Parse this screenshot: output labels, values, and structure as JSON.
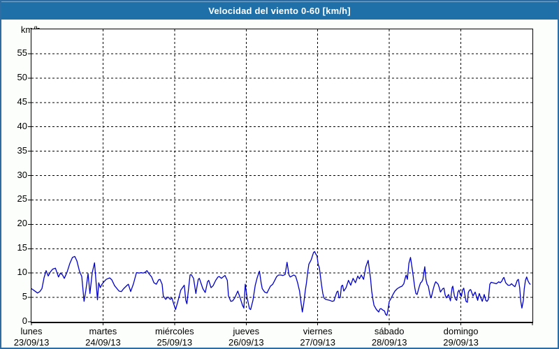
{
  "window": {
    "title": "Velocidad del viento 0-60 [km/h]"
  },
  "colors": {
    "titlebar_bg": "#1f6fa8",
    "titlebar_text": "#ffffff",
    "frame_border": "#2e6ca4",
    "page_bg": "#fbfefb",
    "plot_bg": "#ffffff",
    "grid": "#000000",
    "line": "#0000c8"
  },
  "chart_data": {
    "type": "line",
    "title": "Velocidad del viento 0-60 [km/h]",
    "y_unit_label": "km/h",
    "ylabel": "km/h",
    "xlabel": "",
    "ylim": [
      0,
      60
    ],
    "ytick_step": 5,
    "yticks": [
      0,
      5,
      10,
      15,
      20,
      25,
      30,
      35,
      40,
      45,
      50,
      55
    ],
    "grid": "dashed-black",
    "legend": "none",
    "series_name": "velocidad del viento",
    "x_days": [
      {
        "name": "lunes",
        "date": "23/09/13"
      },
      {
        "name": "martes",
        "date": "24/09/13"
      },
      {
        "name": "miércoles",
        "date": "25/09/13"
      },
      {
        "name": "jueves",
        "date": "26/09/13"
      },
      {
        "name": "viernes",
        "date": "27/09/13"
      },
      {
        "name": "sábado",
        "date": "28/09/13"
      },
      {
        "name": "domingo",
        "date": "29/09/13"
      }
    ],
    "points": [
      [
        0.0,
        6.8
      ],
      [
        0.039,
        6.4
      ],
      [
        0.085,
        5.9
      ],
      [
        0.117,
        6.2
      ],
      [
        0.146,
        6.8
      ],
      [
        0.176,
        9.0
      ],
      [
        0.205,
        10.5
      ],
      [
        0.234,
        9.4
      ],
      [
        0.264,
        10.2
      ],
      [
        0.296,
        10.8
      ],
      [
        0.335,
        11.0
      ],
      [
        0.378,
        9.2
      ],
      [
        0.405,
        10.0
      ],
      [
        0.434,
        9.6
      ],
      [
        0.459,
        8.9
      ],
      [
        0.498,
        10.2
      ],
      [
        0.537,
        12.0
      ],
      [
        0.573,
        13.2
      ],
      [
        0.605,
        13.4
      ],
      [
        0.635,
        12.5
      ],
      [
        0.671,
        10.4
      ],
      [
        0.703,
        9.3
      ],
      [
        0.735,
        4.2
      ],
      [
        0.761,
        6.5
      ],
      [
        0.791,
        9.9
      ],
      [
        0.817,
        5.8
      ],
      [
        0.849,
        10.1
      ],
      [
        0.882,
        12.1
      ],
      [
        0.923,
        4.5
      ],
      [
        0.94,
        8.0
      ],
      [
        0.962,
        7.0
      ],
      [
        0.981,
        7.6
      ],
      [
        1.012,
        8.2
      ],
      [
        1.045,
        8.7
      ],
      [
        1.093,
        9.0
      ],
      [
        1.123,
        8.6
      ],
      [
        1.162,
        7.4
      ],
      [
        1.223,
        6.3
      ],
      [
        1.256,
        6.2
      ],
      [
        1.289,
        6.8
      ],
      [
        1.338,
        7.5
      ],
      [
        1.354,
        7.7
      ],
      [
        1.386,
        6.2
      ],
      [
        1.425,
        7.8
      ],
      [
        1.467,
        10.1
      ],
      [
        1.503,
        10.0
      ],
      [
        1.533,
        10.1
      ],
      [
        1.562,
        10.0
      ],
      [
        1.591,
        10.2
      ],
      [
        1.614,
        10.5
      ],
      [
        1.64,
        9.9
      ],
      [
        1.679,
        9.2
      ],
      [
        1.711,
        8.0
      ],
      [
        1.745,
        7.7
      ],
      [
        1.777,
        8.6
      ],
      [
        1.796,
        8.7
      ],
      [
        1.826,
        7.7
      ],
      [
        1.842,
        5.3
      ],
      [
        1.875,
        4.6
      ],
      [
        1.907,
        5.1
      ],
      [
        1.94,
        4.6
      ],
      [
        1.962,
        4.9
      ],
      [
        1.985,
        3.8
      ],
      [
        2.014,
        2.5
      ],
      [
        2.053,
        4.6
      ],
      [
        2.086,
        6.5
      ],
      [
        2.135,
        7.5
      ],
      [
        2.157,
        4.4
      ],
      [
        2.172,
        3.7
      ],
      [
        2.216,
        9.6
      ],
      [
        2.232,
        9.7
      ],
      [
        2.265,
        8.9
      ],
      [
        2.297,
        5.8
      ],
      [
        2.33,
        8.7
      ],
      [
        2.346,
        8.9
      ],
      [
        2.395,
        6.8
      ],
      [
        2.428,
        6.0
      ],
      [
        2.46,
        8.2
      ],
      [
        2.477,
        8.5
      ],
      [
        2.509,
        7.0
      ],
      [
        2.538,
        7.4
      ],
      [
        2.574,
        8.5
      ],
      [
        2.607,
        9.2
      ],
      [
        2.623,
        9.3
      ],
      [
        2.655,
        8.9
      ],
      [
        2.685,
        9.3
      ],
      [
        2.704,
        9.5
      ],
      [
        2.737,
        8.5
      ],
      [
        2.753,
        5.3
      ],
      [
        2.785,
        4.2
      ],
      [
        2.812,
        4.3
      ],
      [
        2.841,
        4.9
      ],
      [
        2.883,
        6.3
      ],
      [
        2.916,
        4.9
      ],
      [
        2.948,
        3.4
      ],
      [
        2.968,
        2.8
      ],
      [
        2.987,
        7.7
      ],
      [
        3.014,
        4.9
      ],
      [
        3.046,
        2.7
      ],
      [
        3.063,
        2.5
      ],
      [
        3.095,
        4.4
      ],
      [
        3.127,
        7.5
      ],
      [
        3.153,
        9.0
      ],
      [
        3.186,
        10.4
      ],
      [
        3.209,
        8.0
      ],
      [
        3.225,
        6.8
      ],
      [
        3.258,
        6.1
      ],
      [
        3.29,
        5.9
      ],
      [
        3.339,
        7.3
      ],
      [
        3.371,
        7.7
      ],
      [
        3.397,
        8.4
      ],
      [
        3.427,
        9.3
      ],
      [
        3.453,
        9.6
      ],
      [
        3.485,
        9.6
      ],
      [
        3.514,
        9.5
      ],
      [
        3.544,
        9.7
      ],
      [
        3.571,
        12.2
      ],
      [
        3.599,
        9.6
      ],
      [
        3.615,
        9.2
      ],
      [
        3.641,
        9.4
      ],
      [
        3.664,
        9.6
      ],
      [
        3.69,
        9.4
      ],
      [
        3.719,
        8.0
      ],
      [
        3.746,
        6.3
      ],
      [
        3.771,
        3.4
      ],
      [
        3.785,
        2.0
      ],
      [
        3.807,
        4.0
      ],
      [
        3.827,
        6.5
      ],
      [
        3.843,
        8.0
      ],
      [
        3.859,
        10.1
      ],
      [
        3.876,
        11.8
      ],
      [
        3.908,
        12.7
      ],
      [
        3.941,
        14.2
      ],
      [
        3.957,
        14.4
      ],
      [
        3.973,
        13.9
      ],
      [
        3.99,
        13.5
      ],
      [
        4.006,
        11.8
      ],
      [
        4.022,
        11.1
      ],
      [
        4.039,
        9.2
      ],
      [
        4.054,
        7.5
      ],
      [
        4.071,
        5.8
      ],
      [
        4.087,
        4.9
      ],
      [
        4.11,
        4.6
      ],
      [
        4.139,
        4.5
      ],
      [
        4.168,
        4.4
      ],
      [
        4.201,
        4.2
      ],
      [
        4.227,
        4.3
      ],
      [
        4.266,
        6.1
      ],
      [
        4.282,
        6.3
      ],
      [
        4.298,
        4.9
      ],
      [
        4.315,
        5.0
      ],
      [
        4.331,
        7.3
      ],
      [
        4.347,
        7.5
      ],
      [
        4.364,
        6.3
      ],
      [
        4.396,
        7.0
      ],
      [
        4.429,
        8.5
      ],
      [
        4.461,
        7.5
      ],
      [
        4.494,
        8.9
      ],
      [
        4.527,
        8.0
      ],
      [
        4.559,
        9.4
      ],
      [
        4.583,
        8.8
      ],
      [
        4.608,
        9.6
      ],
      [
        4.64,
        8.7
      ],
      [
        4.673,
        11.3
      ],
      [
        4.705,
        12.6
      ],
      [
        4.722,
        10.6
      ],
      [
        4.738,
        8.9
      ],
      [
        4.754,
        6.3
      ],
      [
        4.771,
        4.6
      ],
      [
        4.786,
        3.4
      ],
      [
        4.82,
        2.5
      ],
      [
        4.852,
        2.0
      ],
      [
        4.868,
        2.6
      ],
      [
        4.884,
        2.7
      ],
      [
        4.91,
        2.4
      ],
      [
        4.933,
        2.2
      ],
      [
        4.949,
        1.5
      ],
      [
        4.966,
        1.3
      ],
      [
        4.982,
        2.5
      ],
      [
        5.0,
        4.2
      ],
      [
        5.017,
        4.6
      ],
      [
        5.047,
        5.5
      ],
      [
        5.079,
        6.3
      ],
      [
        5.112,
        6.8
      ],
      [
        5.145,
        7.1
      ],
      [
        5.177,
        7.3
      ],
      [
        5.203,
        7.8
      ],
      [
        5.226,
        9.2
      ],
      [
        5.236,
        9.6
      ],
      [
        5.252,
        8.7
      ],
      [
        5.274,
        12.0
      ],
      [
        5.296,
        13.2
      ],
      [
        5.323,
        10.6
      ],
      [
        5.34,
        8.7
      ],
      [
        5.356,
        7.0
      ],
      [
        5.372,
        5.8
      ],
      [
        5.388,
        5.6
      ],
      [
        5.42,
        7.3
      ],
      [
        5.437,
        8.0
      ],
      [
        5.454,
        8.2
      ],
      [
        5.469,
        8.7
      ],
      [
        5.496,
        11.3
      ],
      [
        5.512,
        8.7
      ],
      [
        5.528,
        7.7
      ],
      [
        5.545,
        7.3
      ],
      [
        5.567,
        5.6
      ],
      [
        5.584,
        4.9
      ],
      [
        5.616,
        6.8
      ],
      [
        5.633,
        7.7
      ],
      [
        5.649,
        8.2
      ],
      [
        5.682,
        7.7
      ],
      [
        5.698,
        7.0
      ],
      [
        5.714,
        6.1
      ],
      [
        5.747,
        6.8
      ],
      [
        5.763,
        6.9
      ],
      [
        5.779,
        5.6
      ],
      [
        5.796,
        4.9
      ],
      [
        5.828,
        5.6
      ],
      [
        5.854,
        4.3
      ],
      [
        5.877,
        7.0
      ],
      [
        5.887,
        7.3
      ],
      [
        5.909,
        5.3
      ],
      [
        5.926,
        4.6
      ],
      [
        5.942,
        4.4
      ],
      [
        5.958,
        6.1
      ],
      [
        5.975,
        6.5
      ],
      [
        5.991,
        5.6
      ],
      [
        6.007,
        5.2
      ],
      [
        6.023,
        6.5
      ],
      [
        6.04,
        6.9
      ],
      [
        6.055,
        5.6
      ],
      [
        6.072,
        4.2
      ],
      [
        6.091,
        4.0
      ],
      [
        6.104,
        6.0
      ],
      [
        6.121,
        6.5
      ],
      [
        6.137,
        6.6
      ],
      [
        6.169,
        5.3
      ],
      [
        6.199,
        6.1
      ],
      [
        6.235,
        4.4
      ],
      [
        6.257,
        5.8
      ],
      [
        6.277,
        5.0
      ],
      [
        6.299,
        4.2
      ],
      [
        6.326,
        5.6
      ],
      [
        6.348,
        4.4
      ],
      [
        6.365,
        4.2
      ],
      [
        6.384,
        4.6
      ],
      [
        6.404,
        7.7
      ],
      [
        6.423,
        8.1
      ],
      [
        6.446,
        8.0
      ],
      [
        6.472,
        7.9
      ],
      [
        6.495,
        7.8
      ],
      [
        6.528,
        8.2
      ],
      [
        6.55,
        8.0
      ],
      [
        6.57,
        8.3
      ],
      [
        6.59,
        8.9
      ],
      [
        6.602,
        9.1
      ],
      [
        6.626,
        8.0
      ],
      [
        6.658,
        7.5
      ],
      [
        6.687,
        7.5
      ],
      [
        6.707,
        7.8
      ],
      [
        6.736,
        7.4
      ],
      [
        6.756,
        7.2
      ],
      [
        6.788,
        8.5
      ],
      [
        6.804,
        8.7
      ],
      [
        6.821,
        7.0
      ],
      [
        6.837,
        4.2
      ],
      [
        6.853,
        2.8
      ],
      [
        6.873,
        4.4
      ],
      [
        6.886,
        6.8
      ],
      [
        6.902,
        8.5
      ],
      [
        6.919,
        9.2
      ],
      [
        6.935,
        8.5
      ],
      [
        6.951,
        8.0
      ],
      [
        6.968,
        7.7
      ]
    ]
  }
}
